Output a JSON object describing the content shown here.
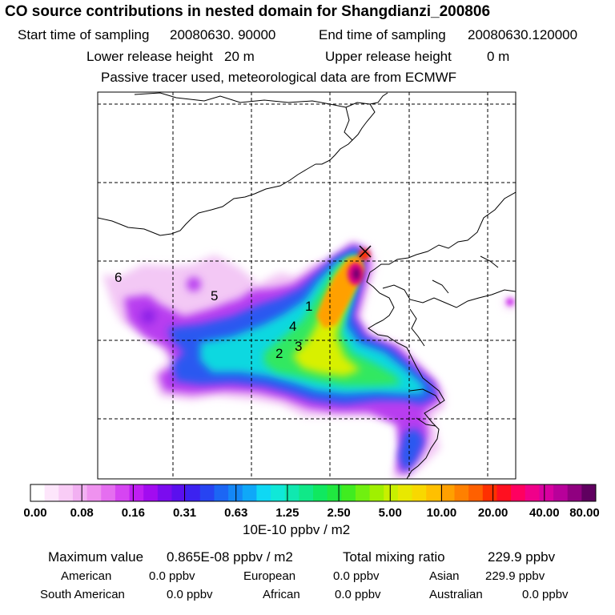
{
  "header": {
    "title": "CO  source contributions in nested domain for Shangdianzi_200806",
    "start_label": "Start time of sampling",
    "start_value": "20080630. 90000",
    "end_label": "End time of sampling",
    "end_value": "20080630.120000",
    "lower_label": "Lower release height",
    "lower_value": "20 m",
    "upper_label": "Upper release height",
    "upper_value": "0 m",
    "note": "Passive tracer used, meteorological data are from ECMWF"
  },
  "map": {
    "region_labels": [
      "1",
      "2",
      "3",
      "4",
      "5",
      "6"
    ],
    "receptor_marker": "x-marker-icon"
  },
  "colorbar": {
    "colors": [
      "#ffffff",
      "#fde6fb",
      "#f9ccf6",
      "#f2b0f2",
      "#ef92ef",
      "#e56ef0",
      "#d645f2",
      "#c01ef3",
      "#a20cf0",
      "#7b0cef",
      "#5a10ee",
      "#3c22f0",
      "#2744f2",
      "#1c66f4",
      "#1487f6",
      "#0fa8f8",
      "#0fd8f4",
      "#10e8d8",
      "#10e8b0",
      "#10e888",
      "#10e860",
      "#20e840",
      "#40ec20",
      "#70f010",
      "#a0f000",
      "#c8f000",
      "#e8e800",
      "#f8d800",
      "#ffc000",
      "#ffa000",
      "#ff8000",
      "#ff6000",
      "#ff3000",
      "#ff1020",
      "#ff0060",
      "#f0008a",
      "#d800a0",
      "#b8009a",
      "#900080",
      "#600060"
    ],
    "tick_labels": [
      "0.00",
      "0.08",
      "0.16",
      "0.31",
      "0.63",
      "1.25",
      "2.50",
      "5.00",
      "10.00",
      "20.00",
      "40.00",
      "80.00"
    ],
    "unit": "10E-10 ppbv / m2"
  },
  "summary": {
    "max_label": "Maximum value",
    "max_value": "0.865E-08 ppbv / m2",
    "total_label": "Total mixing ratio",
    "total_value": "229.9 ppbv",
    "contributions": [
      {
        "name": "American",
        "value": "0.0 ppbv"
      },
      {
        "name": "European",
        "value": "0.0 ppbv"
      },
      {
        "name": "Asian",
        "value": "229.9 ppbv"
      },
      {
        "name": "South American",
        "value": "0.0 ppbv"
      },
      {
        "name": "African",
        "value": "0.0 ppbv"
      },
      {
        "name": "Australian",
        "value": "0.0 ppbv"
      }
    ]
  }
}
